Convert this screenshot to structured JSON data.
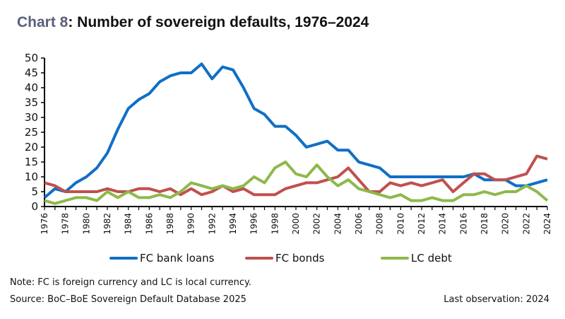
{
  "header": {
    "label": "Chart 8",
    "title": ": Number of sovereign defaults, 1976–2024"
  },
  "chart_data": {
    "type": "line",
    "title": "Chart 8: Number of sovereign defaults, 1976–2024",
    "xlabel": "",
    "ylabel": "",
    "ylim": [
      0,
      50
    ],
    "yticks": [
      "0",
      "5",
      "10",
      "15",
      "20",
      "25",
      "30",
      "35",
      "40",
      "45",
      "50"
    ],
    "xticks": [
      "1976",
      "1978",
      "1980",
      "1982",
      "1984",
      "1986",
      "1988",
      "1990",
      "1992",
      "1994",
      "1996",
      "1998",
      "2000",
      "2002",
      "2004",
      "2006",
      "2008",
      "2010",
      "2012",
      "2014",
      "2016",
      "2018",
      "2020",
      "2022",
      "2024"
    ],
    "x": [
      1976,
      1977,
      1978,
      1979,
      1980,
      1981,
      1982,
      1983,
      1984,
      1985,
      1986,
      1987,
      1988,
      1989,
      1990,
      1991,
      1992,
      1993,
      1994,
      1995,
      1996,
      1997,
      1998,
      1999,
      2000,
      2001,
      2002,
      2003,
      2004,
      2005,
      2006,
      2007,
      2008,
      2009,
      2010,
      2011,
      2012,
      2013,
      2014,
      2015,
      2016,
      2017,
      2018,
      2019,
      2020,
      2021,
      2022,
      2023,
      2024
    ],
    "grid": false,
    "legend_position": "bottom",
    "series": [
      {
        "name": "FC bank loans",
        "color": "#0f6fc6",
        "values": [
          3,
          6,
          5,
          8,
          10,
          13,
          18,
          26,
          33,
          36,
          38,
          42,
          44,
          45,
          45,
          48,
          43,
          47,
          46,
          40,
          33,
          31,
          27,
          27,
          24,
          20,
          21,
          22,
          19,
          19,
          15,
          14,
          13,
          10,
          10,
          10,
          10,
          10,
          10,
          10,
          10,
          11,
          9,
          9,
          9,
          7,
          7,
          8,
          9
        ]
      },
      {
        "name": "FC bonds",
        "color": "#c0504d",
        "values": [
          8,
          7,
          5,
          5,
          5,
          5,
          6,
          5,
          5,
          6,
          6,
          5,
          6,
          4,
          6,
          4,
          5,
          7,
          5,
          6,
          4,
          4,
          4,
          6,
          7,
          8,
          8,
          9,
          10,
          13,
          9,
          5,
          5,
          8,
          7,
          8,
          7,
          8,
          9,
          5,
          8,
          11,
          11,
          9,
          9,
          10,
          11,
          17,
          16
        ]
      },
      {
        "name": "LC debt",
        "color": "#8db94a",
        "values": [
          2,
          1,
          2,
          3,
          3,
          2,
          5,
          3,
          5,
          3,
          3,
          4,
          3,
          5,
          8,
          7,
          6,
          7,
          6,
          7,
          10,
          8,
          13,
          15,
          11,
          10,
          14,
          10,
          7,
          9,
          6,
          5,
          4,
          3,
          4,
          2,
          2,
          3,
          2,
          2,
          4,
          4,
          5,
          4,
          5,
          5,
          7,
          5,
          2
        ]
      }
    ]
  },
  "legend": {
    "items": [
      {
        "label": "FC bank loans",
        "color": "#0f6fc6"
      },
      {
        "label": "FC bonds",
        "color": "#c0504d"
      },
      {
        "label": "LC debt",
        "color": "#8db94a"
      }
    ]
  },
  "footer": {
    "note": "Note: FC is foreign currency and LC is local currency.",
    "source": "Source: BoC–BoE Sovereign Default Database 2025",
    "last_observation": "Last observation: 2024"
  }
}
